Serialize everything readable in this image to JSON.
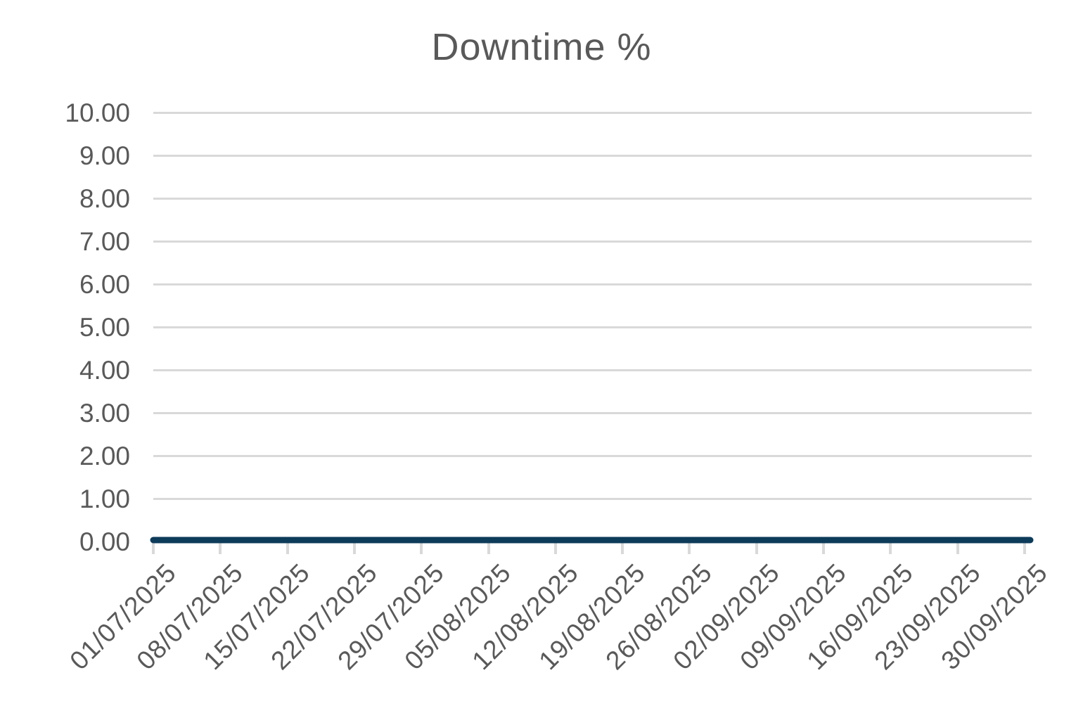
{
  "title": "Downtime %",
  "colors": {
    "background": "#ffffff",
    "title_text": "#595959",
    "axis_label_text": "#595959",
    "gridline": "#d9d9d9",
    "tick_mark": "#d9d9d9",
    "series_line": "#0d3b5a"
  },
  "y_axis": {
    "tick_labels": [
      "10.00",
      "9.00",
      "8.00",
      "7.00",
      "6.00",
      "5.00",
      "4.00",
      "3.00",
      "2.00",
      "1.00",
      "0.00"
    ]
  },
  "x_axis": {
    "tick_labels": [
      "01/07/2025",
      "08/07/2025",
      "15/07/2025",
      "22/07/2025",
      "29/07/2025",
      "05/08/2025",
      "12/08/2025",
      "19/08/2025",
      "26/08/2025",
      "02/09/2025",
      "09/09/2025",
      "16/09/2025",
      "23/09/2025",
      "30/09/2025"
    ]
  },
  "chart_data": {
    "type": "line",
    "title": "Downtime %",
    "x": [
      "01/07/2025",
      "08/07/2025",
      "15/07/2025",
      "22/07/2025",
      "29/07/2025",
      "05/08/2025",
      "12/08/2025",
      "19/08/2025",
      "26/08/2025",
      "02/09/2025",
      "09/09/2025",
      "16/09/2025",
      "23/09/2025",
      "30/09/2025"
    ],
    "series": [
      {
        "name": "Downtime %",
        "values": [
          0,
          0,
          0,
          0,
          0,
          0,
          0,
          0,
          0,
          0,
          0,
          0,
          0,
          0
        ]
      }
    ],
    "xlabel": "",
    "ylabel": "",
    "ylim": [
      0,
      10
    ],
    "ytick_step": 1,
    "ytick_format": "two-decimals",
    "x_label_rotation_deg": -45,
    "grid": "horizontal",
    "legend_position": "none"
  }
}
